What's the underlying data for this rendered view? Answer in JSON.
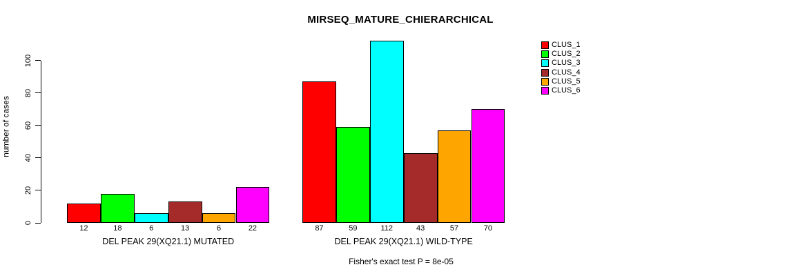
{
  "chart_data": {
    "type": "bar",
    "title": "MIRSEQ_MATURE_CHIERARCHICAL",
    "ylabel": "number of cases",
    "ylim": [
      0,
      100
    ],
    "yticks": [
      0,
      20,
      40,
      60,
      80,
      100
    ],
    "grid": false,
    "legend_position": "right-outside",
    "categories": [
      "DEL PEAK 29(XQ21.1) MUTATED",
      "DEL PEAK 29(XQ21.1) WILD-TYPE"
    ],
    "series": [
      {
        "name": "CLUS_1",
        "color": "#FF0000",
        "values": [
          12,
          87
        ]
      },
      {
        "name": "CLUS_2",
        "color": "#00FF00",
        "values": [
          18,
          59
        ]
      },
      {
        "name": "CLUS_3",
        "color": "#00FFFF",
        "values": [
          6,
          112
        ]
      },
      {
        "name": "CLUS_4",
        "color": "#A52A2A",
        "values": [
          13,
          43
        ]
      },
      {
        "name": "CLUS_5",
        "color": "#FFA500",
        "values": [
          6,
          57
        ]
      },
      {
        "name": "CLUS_6",
        "color": "#FF00FF",
        "values": [
          22,
          70
        ]
      }
    ],
    "bar_value_labels": [
      [
        12,
        18,
        6,
        13,
        6,
        22
      ],
      [
        87,
        59,
        112,
        43,
        57,
        70
      ]
    ],
    "annotation": "Fisher's exact test P = 8e-05",
    "axis_color": "#000000",
    "text_color": "#000000",
    "background_color": "#FFFFFF"
  }
}
